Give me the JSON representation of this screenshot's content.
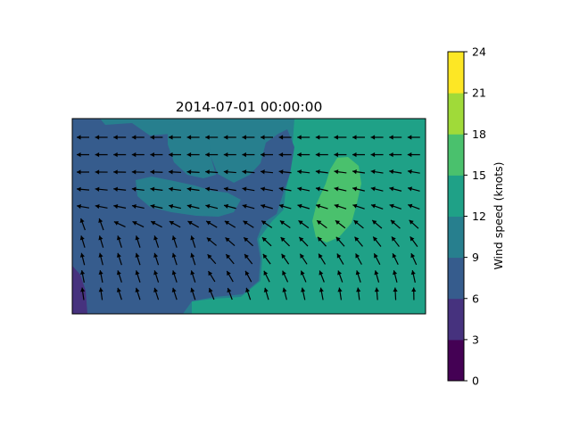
{
  "chart_data": {
    "type": "heatmap",
    "subtype": "filled contour with wind vector arrows",
    "title": "2014-07-01 00:00:00",
    "colorbar": {
      "label": "Wind speed (knots)",
      "ticks": [
        0,
        3,
        6,
        9,
        12,
        15,
        18,
        21,
        24
      ],
      "levels": [
        0,
        3,
        6,
        9,
        12,
        15,
        18,
        21,
        24
      ],
      "colors": [
        "#440154",
        "#46327e",
        "#365c8d",
        "#277f8e",
        "#1fa187",
        "#4ac16d",
        "#a0da39",
        "#fde725"
      ]
    },
    "grid": false,
    "legend_position": "right",
    "arrow_grid": {
      "rows": 10,
      "cols": 19
    },
    "regions": [
      {
        "band": "6-9",
        "description": "western and central areas"
      },
      {
        "band": "12-15",
        "description": "eastern area and south strip"
      },
      {
        "band": "15-18",
        "description": "small patch on the east"
      },
      {
        "band": "3-6",
        "description": "south-west corner"
      }
    ]
  }
}
